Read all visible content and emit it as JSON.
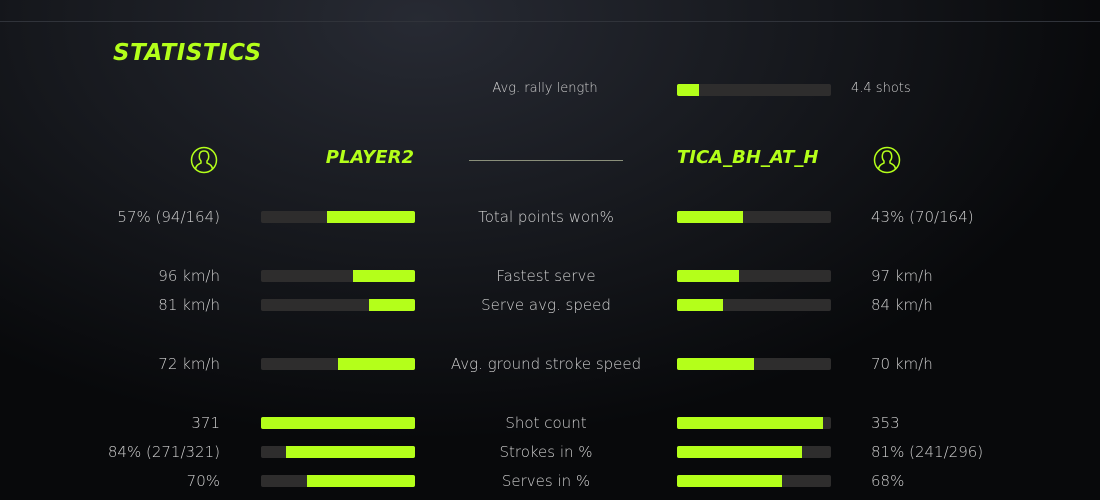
{
  "title": "STATISTICS",
  "accent": "#b4ff1a",
  "rally": {
    "label": "Avg. rally length",
    "value": "4.4 shots",
    "fraction": 0.14
  },
  "players": {
    "left": {
      "name": "PLAYER2",
      "icon": "user-icon"
    },
    "right": {
      "name": "TICA_BH_AT_H",
      "icon": "user-icon"
    }
  },
  "stats": [
    {
      "label": "Total points won%",
      "left": "57% (94/164)",
      "right": "43% (70/164)",
      "left_fraction": 0.57,
      "right_fraction": 0.43
    },
    {
      "label": "Fastest serve",
      "left": "96 km/h",
      "right": "97 km/h",
      "left_fraction": 0.4,
      "right_fraction": 0.4
    },
    {
      "label": "Serve avg. speed",
      "left": "81 km/h",
      "right": "84 km/h",
      "left_fraction": 0.3,
      "right_fraction": 0.3
    },
    {
      "label": "Avg. ground stroke speed",
      "left": "72 km/h",
      "right": "70 km/h",
      "left_fraction": 0.5,
      "right_fraction": 0.5
    },
    {
      "label": "Shot count",
      "left": "371",
      "right": "353",
      "left_fraction": 1.0,
      "right_fraction": 0.95
    },
    {
      "label": "Strokes in %",
      "left": "84% (271/321)",
      "right": "81% (241/296)",
      "left_fraction": 0.84,
      "right_fraction": 0.81
    },
    {
      "label": "Serves in %",
      "left": "70%",
      "right": "68%",
      "left_fraction": 0.7,
      "right_fraction": 0.68
    }
  ]
}
